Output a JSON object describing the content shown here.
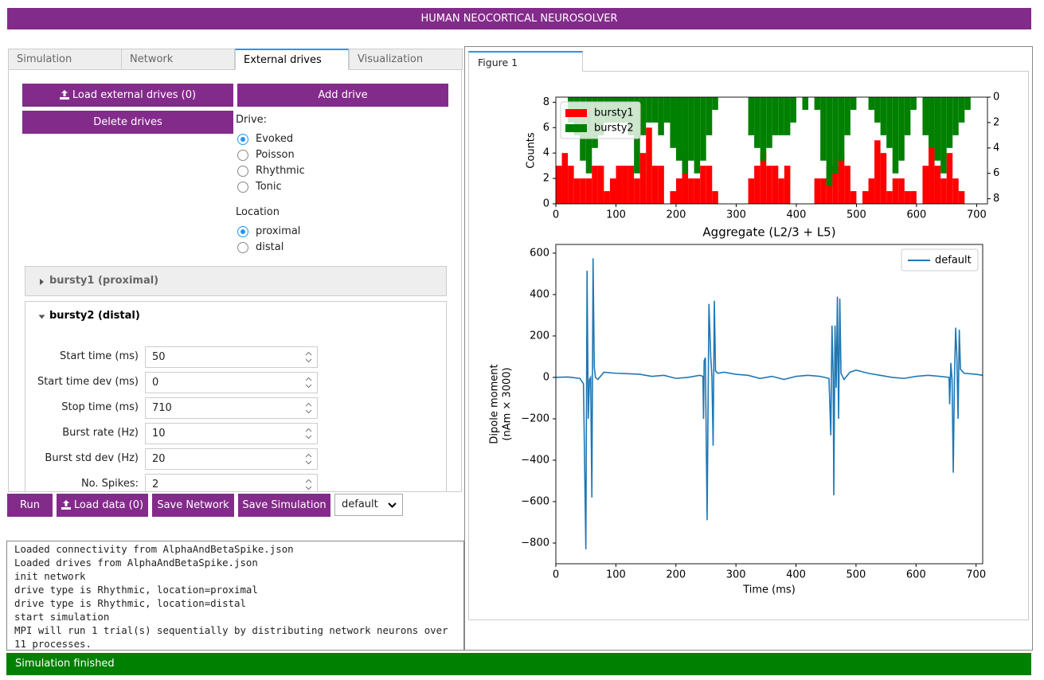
{
  "header": {
    "title": "HUMAN NEOCORTICAL NEUROSOLVER"
  },
  "tabs": {
    "items": [
      "Simulation",
      "Network",
      "External drives",
      "Visualization"
    ],
    "active_index": 2
  },
  "drives_panel": {
    "load_button": "Load external drives (0)",
    "add_button": "Add drive",
    "delete_button": "Delete drives",
    "drive_label": "Drive:",
    "drive_options": [
      "Evoked",
      "Poisson",
      "Rhythmic",
      "Tonic"
    ],
    "drive_selected_index": 0,
    "location_label": "Location",
    "location_options": [
      "proximal",
      "distal"
    ],
    "location_selected_index": 0
  },
  "accordions": [
    {
      "title": "bursty1 (proximal)",
      "open": false
    },
    {
      "title": "bursty2 (distal)",
      "open": true
    }
  ],
  "fields": [
    {
      "label": "Start time (ms)",
      "value": 50
    },
    {
      "label": "Start time dev (ms)",
      "value": 0
    },
    {
      "label": "Stop time (ms)",
      "value": 710
    },
    {
      "label": "Burst rate (Hz)",
      "value": 10
    },
    {
      "label": "Burst std dev (Hz)",
      "value": 20
    },
    {
      "label": "No. Spikes:",
      "value": 2
    }
  ],
  "actions": {
    "run": "Run",
    "load_data": "Load data (0)",
    "save_network": "Save Network",
    "save_simulation": "Save Simulation",
    "dataset": "default"
  },
  "log": [
    "Loaded connectivity from AlphaAndBetaSpike.json",
    "Loaded drives from AlphaAndBetaSpike.json",
    "init network",
    "drive type is Rhythmic, location=proximal",
    "drive type is Rhythmic, location=distal",
    "start simulation",
    "MPI will run 1 trial(s) sequentially by distributing network neurons over 11 processes."
  ],
  "figure_tabs": [
    "Figure 1"
  ],
  "chart_data": [
    {
      "type": "histogram",
      "ylabel": "Counts",
      "bins": [
        0,
        10,
        20,
        30,
        40,
        50,
        60,
        70,
        80,
        90,
        100,
        110,
        120,
        130,
        140,
        150,
        160,
        170,
        180,
        190,
        200,
        210,
        220,
        230,
        240,
        250,
        260,
        270,
        280,
        290,
        300,
        310,
        320,
        330,
        340,
        350,
        360,
        370,
        380,
        390,
        400,
        410,
        420,
        430,
        440,
        450,
        460,
        470,
        480,
        490,
        500,
        510,
        520,
        530,
        540,
        550,
        560,
        570,
        580,
        590,
        600,
        610,
        620,
        630,
        640,
        650,
        660,
        670,
        680,
        690,
        700
      ],
      "series": [
        {
          "name": "bursty1",
          "color": "#ff0000",
          "values": [
            3,
            4,
            3,
            2,
            2,
            2,
            3,
            3,
            1,
            2,
            3,
            3,
            3,
            2,
            4,
            6,
            3,
            3,
            0,
            1,
            2,
            4,
            2,
            2,
            3,
            3,
            1,
            0,
            0,
            0,
            0,
            0,
            2,
            3,
            4,
            3,
            3,
            2,
            3,
            0,
            0,
            0,
            0,
            2,
            2,
            3,
            3,
            4,
            3,
            1,
            0,
            1,
            2,
            5,
            4,
            1,
            2,
            2,
            1,
            1,
            0,
            3,
            5,
            3,
            2,
            4,
            2,
            1,
            0,
            0
          ]
        },
        {
          "name": "bursty2",
          "color": "#008000",
          "axis": "y2",
          "values": [
            0,
            0,
            2,
            3,
            5,
            6,
            4,
            3,
            2,
            2,
            2,
            2,
            3,
            6,
            3,
            2,
            2,
            3,
            2,
            4,
            5,
            6,
            5,
            6,
            5,
            3,
            1,
            0,
            0,
            0,
            0,
            0,
            3,
            4,
            5,
            4,
            3,
            3,
            3,
            2,
            0,
            1,
            0,
            1,
            5,
            7,
            6,
            5,
            3,
            1,
            0,
            0,
            1,
            2,
            3,
            4,
            6,
            5,
            3,
            1,
            0,
            3,
            4,
            5,
            6,
            4,
            3,
            2,
            1,
            0
          ]
        }
      ],
      "xlim": [
        0,
        718
      ],
      "xticks": [
        0,
        100,
        200,
        300,
        400,
        500,
        600,
        700
      ],
      "ylim": [
        0,
        8.4
      ],
      "yticks": [
        0,
        2,
        4,
        6,
        8
      ],
      "y2lim": [
        8.4,
        0
      ],
      "y2ticks": [
        0,
        2,
        4,
        6,
        8
      ],
      "legend": "upper left"
    },
    {
      "type": "line",
      "title": "Aggregate (L2/3 + L5)",
      "xlabel": "Time (ms)",
      "ylabel": [
        "Dipole moment",
        "(nAm × 3000)"
      ],
      "x": [
        0,
        20,
        40,
        46,
        50,
        52,
        54,
        56,
        58,
        60,
        62,
        64,
        66,
        70,
        80,
        100,
        120,
        140,
        160,
        180,
        200,
        220,
        240,
        245,
        246,
        247,
        249,
        252,
        255,
        258,
        260,
        262,
        264,
        266,
        270,
        280,
        300,
        320,
        340,
        360,
        380,
        400,
        420,
        440,
        455,
        458,
        460,
        462,
        463,
        465,
        467,
        469,
        471,
        473,
        475,
        480,
        490,
        500,
        520,
        540,
        560,
        580,
        600,
        620,
        640,
        655,
        656,
        658,
        660,
        662,
        664,
        666,
        668,
        670,
        672,
        674,
        680,
        700,
        711
      ],
      "series": [
        {
          "name": "default",
          "color": "#1f77b4",
          "values": [
            0,
            2,
            -5,
            -30,
            -830,
            515,
            -200,
            -10,
            0,
            -580,
            575,
            50,
            0,
            -10,
            25,
            20,
            18,
            15,
            5,
            10,
            -5,
            0,
            10,
            5,
            -200,
            80,
            95,
            -690,
            355,
            100,
            0,
            -330,
            370,
            30,
            20,
            25,
            15,
            10,
            -5,
            5,
            -10,
            5,
            10,
            5,
            -5,
            -280,
            250,
            0,
            -570,
            250,
            -50,
            390,
            -200,
            380,
            20,
            -10,
            25,
            35,
            20,
            10,
            0,
            -5,
            5,
            10,
            5,
            0,
            -130,
            70,
            -10,
            -460,
            0,
            240,
            100,
            -200,
            230,
            40,
            20,
            15,
            10
          ]
        }
      ],
      "xlim": [
        0,
        711
      ],
      "xticks": [
        0,
        100,
        200,
        300,
        400,
        500,
        600,
        700
      ],
      "ylim": [
        -900,
        642
      ],
      "yticks": [
        {
          "value": -800,
          "label": "−800"
        },
        {
          "value": -600,
          "label": "−600"
        },
        {
          "value": -400,
          "label": "−400"
        },
        {
          "value": -200,
          "label": "−200"
        },
        0,
        200,
        400,
        600
      ],
      "legend": "upper right"
    }
  ],
  "status": "Simulation finished"
}
